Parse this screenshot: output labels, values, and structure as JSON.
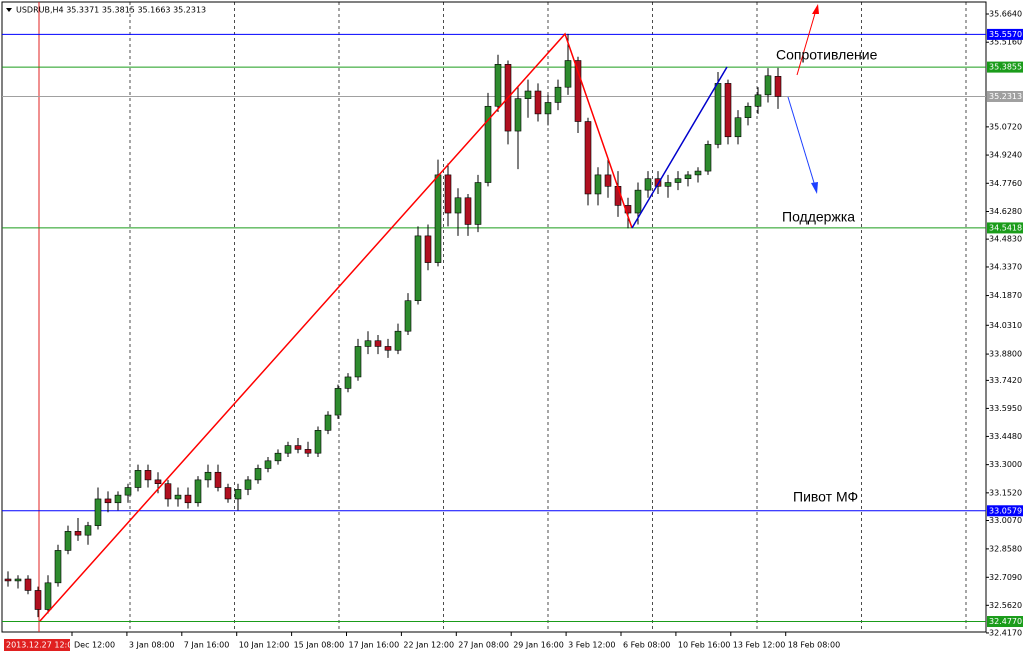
{
  "chart_data": {
    "type": "candlestick",
    "title": "USDRUB,H4  35.3371 35.3815 35.1663 35.2313",
    "ylim": [
      32.422,
      35.727
    ],
    "yticks": [
      {
        "value": 35.664,
        "label": "35.6640"
      },
      {
        "value": 35.516,
        "label": "35.5160"
      },
      {
        "value": 35.072,
        "label": "35.0720"
      },
      {
        "value": 34.924,
        "label": "34.9240"
      },
      {
        "value": 34.776,
        "label": "34.7760"
      },
      {
        "value": 34.628,
        "label": "34.6280"
      },
      {
        "value": 34.483,
        "label": "34.4830"
      },
      {
        "value": 34.337,
        "label": "34.3370"
      },
      {
        "value": 34.187,
        "label": "34.1870"
      },
      {
        "value": 34.031,
        "label": "34.0310"
      },
      {
        "value": 33.88,
        "label": "33.8800"
      },
      {
        "value": 33.742,
        "label": "33.7420"
      },
      {
        "value": 33.595,
        "label": "33.5950"
      },
      {
        "value": 33.448,
        "label": "33.4480"
      },
      {
        "value": 33.3,
        "label": "33.3000"
      },
      {
        "value": 33.152,
        "label": "33.1520"
      },
      {
        "value": 33.007,
        "label": "33.0070"
      },
      {
        "value": 32.858,
        "label": "32.8580"
      },
      {
        "value": 32.709,
        "label": "32.7090"
      },
      {
        "value": 32.562,
        "label": "32.5620"
      },
      {
        "value": 32.417,
        "label": "32.4170"
      }
    ],
    "x_labels": [
      "2013.12.27 12:00",
      "Dec 12:00",
      "3 Jan 08:00",
      "7 Jan 16:00",
      "10 Jan 12:00",
      "15 Jan 08:00",
      "17 Jan 16:00",
      "22 Jan 12:00",
      "27 Jan 08:00",
      "29 Jan 16:00",
      "3 Feb 12:00",
      "6 Feb 08:00",
      "10 Feb 16:00",
      "13 Feb 12:00",
      "18 Feb 08:00"
    ],
    "up_color": "#2e8b2e",
    "down_color": "#b01020",
    "levels": [
      {
        "value": 35.557,
        "label": "35.5570",
        "color": "#0000ff"
      },
      {
        "value": 35.3855,
        "label": "35.3855",
        "color": "#1a9c1a"
      },
      {
        "value": 35.2313,
        "label": "35.2313",
        "color": "#a0a0a0"
      },
      {
        "value": 34.5418,
        "label": "34.5418",
        "color": "#1a9c1a"
      },
      {
        "value": 33.0579,
        "label": "33.0579",
        "color": "#0000ff"
      },
      {
        "value": 32.477,
        "label": "32.4770",
        "color": "#1a9c1a"
      }
    ],
    "annotations": [
      "Сопротивление",
      "Поддержка",
      "Пивот МФ"
    ],
    "ohlc": [
      [
        32.7,
        32.74,
        32.66,
        32.69
      ],
      [
        32.69,
        32.72,
        32.65,
        32.7
      ],
      [
        32.7,
        32.72,
        32.62,
        32.64
      ],
      [
        32.64,
        32.66,
        32.5,
        32.54
      ],
      [
        32.54,
        32.72,
        32.52,
        32.68
      ],
      [
        32.68,
        32.88,
        32.66,
        32.85
      ],
      [
        32.85,
        32.98,
        32.83,
        32.95
      ],
      [
        32.95,
        33.02,
        32.9,
        32.93
      ],
      [
        32.93,
        33.0,
        32.88,
        32.98
      ],
      [
        32.98,
        33.18,
        32.96,
        33.12
      ],
      [
        33.12,
        33.16,
        33.05,
        33.1
      ],
      [
        33.1,
        33.16,
        33.06,
        33.14
      ],
      [
        33.14,
        33.2,
        33.1,
        33.18
      ],
      [
        33.18,
        33.3,
        33.16,
        33.27
      ],
      [
        33.27,
        33.3,
        33.18,
        33.22
      ],
      [
        33.22,
        33.26,
        33.15,
        33.2
      ],
      [
        33.2,
        33.22,
        33.08,
        33.12
      ],
      [
        33.12,
        33.18,
        33.08,
        33.14
      ],
      [
        33.14,
        33.18,
        33.07,
        33.1
      ],
      [
        33.1,
        33.24,
        33.08,
        33.22
      ],
      [
        33.22,
        33.3,
        33.18,
        33.26
      ],
      [
        33.26,
        33.3,
        33.16,
        33.18
      ],
      [
        33.18,
        33.2,
        33.1,
        33.12
      ],
      [
        33.12,
        33.2,
        33.06,
        33.17
      ],
      [
        33.17,
        33.24,
        33.14,
        33.22
      ],
      [
        33.22,
        33.3,
        33.2,
        33.28
      ],
      [
        33.28,
        33.34,
        33.26,
        33.32
      ],
      [
        33.32,
        33.38,
        33.3,
        33.36
      ],
      [
        33.36,
        33.42,
        33.34,
        33.4
      ],
      [
        33.4,
        33.44,
        33.36,
        33.38
      ],
      [
        33.38,
        33.42,
        33.34,
        33.36
      ],
      [
        33.36,
        33.5,
        33.34,
        33.48
      ],
      [
        33.48,
        33.58,
        33.46,
        33.56
      ],
      [
        33.56,
        33.72,
        33.54,
        33.7
      ],
      [
        33.7,
        33.78,
        33.68,
        33.76
      ],
      [
        33.76,
        33.96,
        33.74,
        33.92
      ],
      [
        33.92,
        34.0,
        33.88,
        33.95
      ],
      [
        33.95,
        33.98,
        33.88,
        33.92
      ],
      [
        33.92,
        33.96,
        33.86,
        33.9
      ],
      [
        33.9,
        34.04,
        33.88,
        34.0
      ],
      [
        34.0,
        34.2,
        33.98,
        34.16
      ],
      [
        34.16,
        34.55,
        34.14,
        34.5
      ],
      [
        34.5,
        34.56,
        34.32,
        34.36
      ],
      [
        34.36,
        34.9,
        34.34,
        34.82
      ],
      [
        34.82,
        34.88,
        34.55,
        34.62
      ],
      [
        34.62,
        34.75,
        34.5,
        34.7
      ],
      [
        34.7,
        34.72,
        34.5,
        34.56
      ],
      [
        34.56,
        34.82,
        34.52,
        34.78
      ],
      [
        34.78,
        35.25,
        34.76,
        35.18
      ],
      [
        35.18,
        35.45,
        35.15,
        35.4
      ],
      [
        35.4,
        35.42,
        34.98,
        35.05
      ],
      [
        35.05,
        35.28,
        34.85,
        35.22
      ],
      [
        35.22,
        35.32,
        35.12,
        35.26
      ],
      [
        35.26,
        35.3,
        35.1,
        35.14
      ],
      [
        35.14,
        35.24,
        35.08,
        35.2
      ],
      [
        35.2,
        35.32,
        35.16,
        35.28
      ],
      [
        35.28,
        35.56,
        35.24,
        35.42
      ],
      [
        35.42,
        35.44,
        35.04,
        35.1
      ],
      [
        35.1,
        35.12,
        34.66,
        34.72
      ],
      [
        34.72,
        34.86,
        34.66,
        34.82
      ],
      [
        34.82,
        34.9,
        34.7,
        34.76
      ],
      [
        34.76,
        34.84,
        34.6,
        34.66
      ],
      [
        34.66,
        34.7,
        34.54,
        34.62
      ],
      [
        34.62,
        34.78,
        34.56,
        34.74
      ],
      [
        34.74,
        34.84,
        34.7,
        34.8
      ],
      [
        34.8,
        34.84,
        34.72,
        34.76
      ],
      [
        34.76,
        34.82,
        34.7,
        34.78
      ],
      [
        34.78,
        34.84,
        34.74,
        34.8
      ],
      [
        34.8,
        34.84,
        34.76,
        34.82
      ],
      [
        34.82,
        34.86,
        34.78,
        34.84
      ],
      [
        34.84,
        35.0,
        34.82,
        34.98
      ],
      [
        34.98,
        35.36,
        34.96,
        35.3
      ],
      [
        35.3,
        35.32,
        34.98,
        35.02
      ],
      [
        35.02,
        35.16,
        34.98,
        35.12
      ],
      [
        35.12,
        35.2,
        35.08,
        35.18
      ],
      [
        35.18,
        35.28,
        35.14,
        35.24
      ],
      [
        35.24,
        35.38,
        35.2,
        35.34
      ],
      [
        35.3371,
        35.3815,
        35.1663,
        35.2313
      ]
    ]
  }
}
